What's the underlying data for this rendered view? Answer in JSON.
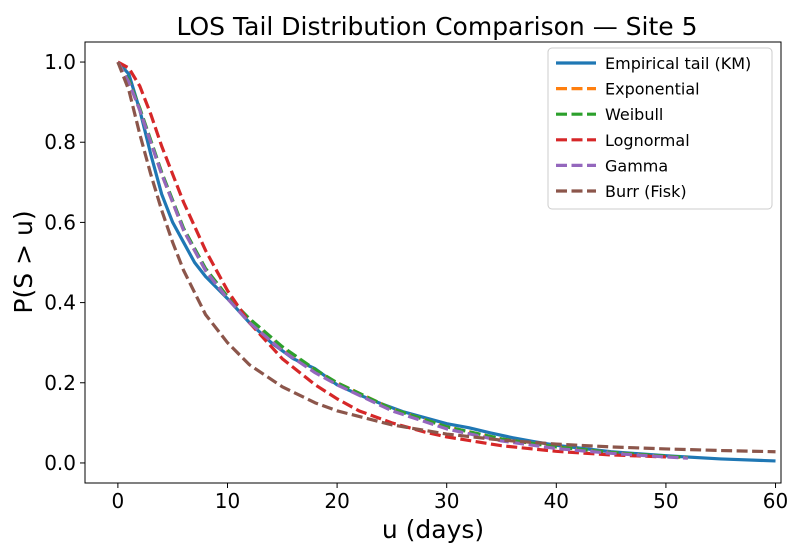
{
  "chart_data": {
    "type": "line",
    "title": "LOS Tail Distribution Comparison — Site 5",
    "xlabel": "u (days)",
    "ylabel": "P(S > u)",
    "xlim": [
      -3,
      60.5
    ],
    "ylim": [
      -0.05,
      1.05
    ],
    "xticks": [
      0,
      10,
      20,
      30,
      40,
      50,
      60
    ],
    "yticks": [
      0.0,
      0.2,
      0.4,
      0.6,
      0.8,
      1.0
    ],
    "xtick_labels": [
      "0",
      "10",
      "20",
      "30",
      "40",
      "50",
      "60"
    ],
    "ytick_labels": [
      "0.0",
      "0.2",
      "0.4",
      "0.6",
      "0.8",
      "1.0"
    ],
    "legend_position": "top-right",
    "series": [
      {
        "name": "Empirical tail (KM)",
        "color": "#1f77b4",
        "style": "solid",
        "x": [
          0,
          1,
          2,
          3,
          4,
          5,
          6,
          7,
          8,
          10,
          12,
          14,
          16,
          18,
          20,
          22,
          24,
          26,
          28,
          30,
          32,
          34,
          36,
          38,
          40,
          45,
          50,
          55,
          59,
          60
        ],
        "y": [
          1.0,
          0.97,
          0.88,
          0.77,
          0.67,
          0.6,
          0.55,
          0.5,
          0.465,
          0.41,
          0.35,
          0.3,
          0.26,
          0.235,
          0.195,
          0.17,
          0.148,
          0.128,
          0.113,
          0.098,
          0.088,
          0.075,
          0.063,
          0.053,
          0.044,
          0.028,
          0.018,
          0.01,
          0.006,
          0.005
        ]
      },
      {
        "name": "Exponential",
        "color": "#ff7f0e",
        "style": "dashed",
        "x": [
          0,
          1,
          2,
          3,
          4,
          5,
          6,
          8,
          10,
          12,
          15,
          18,
          20,
          25,
          30,
          35,
          40,
          45,
          50,
          52
        ],
        "y": [
          1.0,
          0.95,
          0.88,
          0.8,
          0.72,
          0.65,
          0.58,
          0.48,
          0.41,
          0.355,
          0.285,
          0.23,
          0.2,
          0.135,
          0.09,
          0.06,
          0.04,
          0.026,
          0.016,
          0.013
        ]
      },
      {
        "name": "Weibull",
        "color": "#2ca02c",
        "style": "dashed",
        "x": [
          0,
          1,
          2,
          3,
          4,
          5,
          6,
          8,
          10,
          12,
          15,
          18,
          20,
          25,
          30,
          35,
          40,
          45,
          50,
          52
        ],
        "y": [
          1.0,
          0.955,
          0.885,
          0.805,
          0.725,
          0.655,
          0.585,
          0.485,
          0.415,
          0.36,
          0.29,
          0.233,
          0.2,
          0.135,
          0.09,
          0.06,
          0.04,
          0.026,
          0.017,
          0.014
        ]
      },
      {
        "name": "Lognormal",
        "color": "#d62728",
        "style": "dashed",
        "x": [
          0,
          1,
          2,
          3,
          4,
          5,
          6,
          8,
          10,
          12,
          15,
          18,
          20,
          22,
          25,
          28,
          30,
          35,
          40,
          45,
          50
        ],
        "y": [
          1.0,
          0.985,
          0.94,
          0.87,
          0.79,
          0.72,
          0.65,
          0.53,
          0.43,
          0.35,
          0.26,
          0.195,
          0.16,
          0.13,
          0.1,
          0.077,
          0.065,
          0.043,
          0.029,
          0.02,
          0.015
        ]
      },
      {
        "name": "Gamma",
        "color": "#9467bd",
        "style": "dashed",
        "x": [
          0,
          1,
          2,
          3,
          4,
          5,
          6,
          8,
          10,
          12,
          15,
          18,
          20,
          25,
          30,
          35,
          40,
          45,
          50,
          52
        ],
        "y": [
          1.0,
          0.95,
          0.88,
          0.8,
          0.72,
          0.65,
          0.58,
          0.48,
          0.41,
          0.35,
          0.28,
          0.225,
          0.195,
          0.13,
          0.085,
          0.055,
          0.036,
          0.024,
          0.015,
          0.012
        ]
      },
      {
        "name": "Burr (Fisk)",
        "color": "#8c564b",
        "style": "dashed",
        "x": [
          0,
          1,
          2,
          3,
          4,
          5,
          6,
          8,
          10,
          12,
          15,
          18,
          20,
          25,
          30,
          35,
          40,
          45,
          50,
          55,
          60
        ],
        "y": [
          1.0,
          0.93,
          0.82,
          0.72,
          0.63,
          0.55,
          0.48,
          0.37,
          0.3,
          0.245,
          0.19,
          0.15,
          0.13,
          0.095,
          0.072,
          0.057,
          0.047,
          0.04,
          0.035,
          0.031,
          0.028
        ]
      }
    ]
  }
}
